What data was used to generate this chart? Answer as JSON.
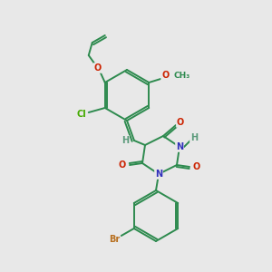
{
  "background_color": "#e8e8e8",
  "atom_colors": {
    "C": "#2d8a4e",
    "N": "#3030bb",
    "O": "#cc2200",
    "Cl": "#44aa00",
    "Br": "#b87020",
    "H": "#5a9a7a"
  },
  "bond_color": "#2d8a4e",
  "bond_width": 1.4
}
